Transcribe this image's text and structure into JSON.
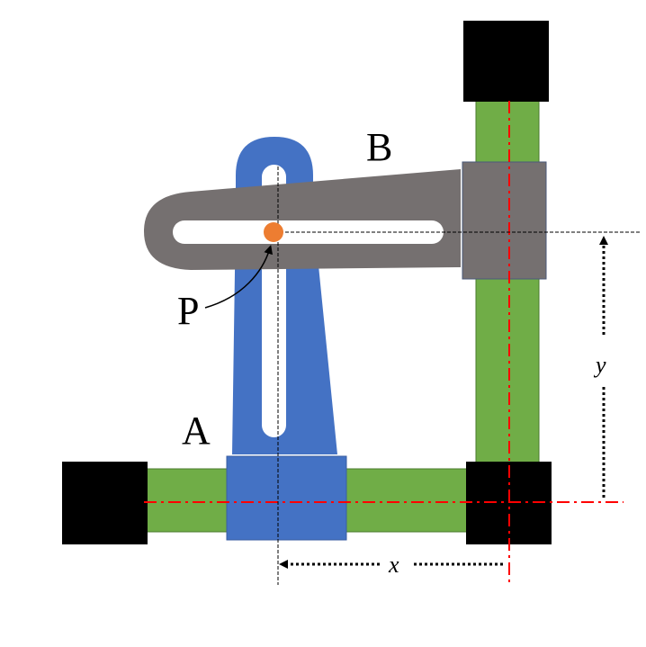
{
  "labels": {
    "a": "A",
    "b": "B",
    "p": "P",
    "x": "x",
    "y": "y"
  },
  "colors": {
    "rail": "#70ad47",
    "rail_border": "#4a7a2e",
    "block": "#000000",
    "slider_a": "#4472c4",
    "arm_b": "#757070",
    "pin": "#ed7d31",
    "centerline": "#ff0000",
    "guide": "#000000"
  },
  "icons": {
    "pin": "pin-circle",
    "arrow_x": "arrow-left",
    "arrow_y": "arrow-up"
  }
}
